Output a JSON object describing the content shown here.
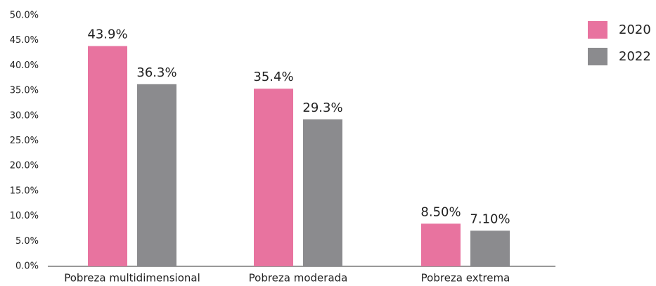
{
  "chart_data": {
    "type": "bar",
    "categories": [
      "Pobreza multidimensional",
      "Pobreza moderada",
      "Pobreza extrema"
    ],
    "series": [
      {
        "name": "2020",
        "color": "#e8739f",
        "values": [
          43.9,
          35.4,
          8.5
        ],
        "value_labels": [
          "43.9%",
          "35.4%",
          "8.50%"
        ]
      },
      {
        "name": "2022",
        "color": "#8b8b8e",
        "values": [
          36.3,
          29.3,
          7.1
        ],
        "value_labels": [
          "36.3%",
          "29.3%",
          "7.10%"
        ]
      }
    ],
    "ylim": [
      0,
      50
    ],
    "yticks": [
      {
        "value": 0,
        "label": "0.0%"
      },
      {
        "value": 5,
        "label": "5.0%"
      },
      {
        "value": 10,
        "label": "10.0%"
      },
      {
        "value": 15,
        "label": "15.0%"
      },
      {
        "value": 20,
        "label": "20.0%"
      },
      {
        "value": 25,
        "label": "25.0%"
      },
      {
        "value": 30,
        "label": "30.0%"
      },
      {
        "value": 35,
        "label": "35.0%"
      },
      {
        "value": 40,
        "label": "40.0%"
      },
      {
        "value": 45,
        "label": "45.0%"
      },
      {
        "value": 50,
        "label": "50.0%"
      }
    ],
    "grid": false,
    "legend": "top-right"
  }
}
